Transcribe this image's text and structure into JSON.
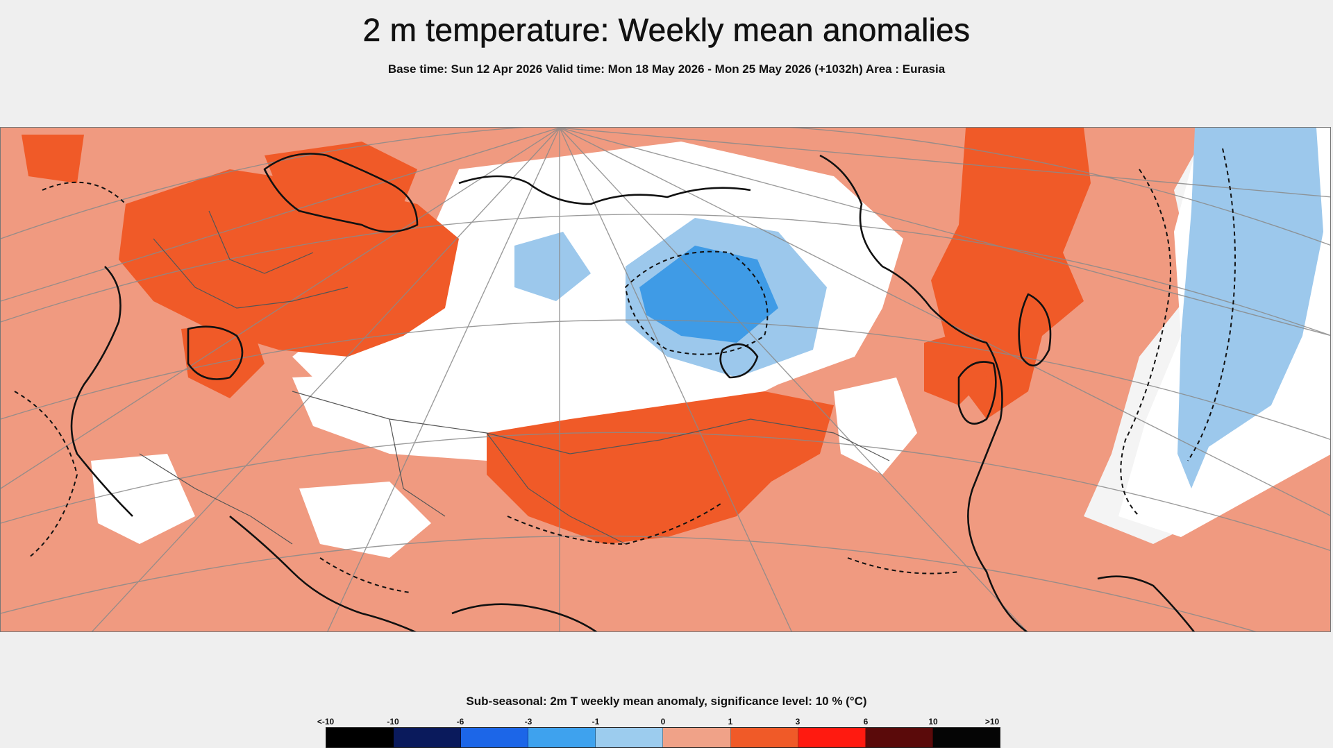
{
  "header": {
    "title": "2 m temperature: Weekly mean anomalies",
    "subtitle": "Base time: Sun 12 Apr 2026 Valid time: Mon 18 May 2026 - Mon 25 May 2026 (+1032h) Area : Eurasia"
  },
  "map": {
    "region": "Eurasia",
    "colors": {
      "ocean_background": "#f4f4f4",
      "neutral": "#ffffff",
      "warm_1_3": "#f09a80",
      "warm_3_6": "#f05a28",
      "cool_minus1_0": "#9cc8ec",
      "cool_minus3_minus1": "#3f9be6",
      "coastline": "#111111",
      "graticule": "#8a8a8a",
      "border": "#555555"
    }
  },
  "legend": {
    "title": "Sub-seasonal: 2m T weekly mean anomaly, significance level: 10 % (°C)",
    "labels": [
      "<-10",
      "-10",
      "-6",
      "-3",
      "-1",
      "0",
      "1",
      "3",
      "6",
      "10",
      ">10"
    ],
    "colors": [
      "#000000",
      "#0a1a5c",
      "#1c66e8",
      "#3ea2ee",
      "#9cccee",
      "#f0a288",
      "#f05a28",
      "#ff1a10",
      "#5a0a0a",
      "#050505"
    ]
  }
}
